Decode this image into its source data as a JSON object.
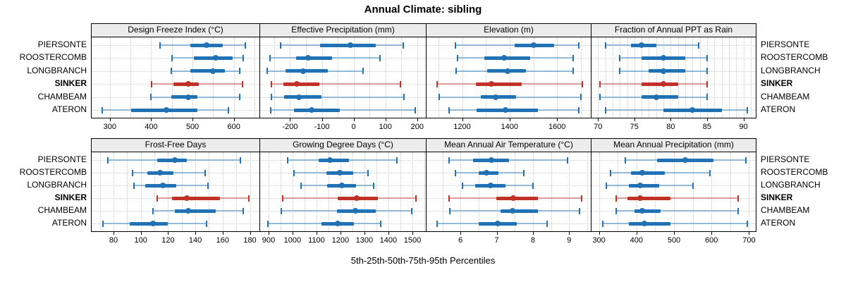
{
  "title": "Annual Climate: sibling",
  "footer": "5th-25th-50th-75th-95th Percentiles",
  "sites": [
    "PIERSONTE",
    "ROOSTERCOMB",
    "LONGBRANCH",
    "SINKER",
    "CHAMBEAM",
    "ATERON"
  ],
  "highlight_site": "SINKER",
  "colors": {
    "normal": "#2171b5",
    "highlight": "#c23127",
    "header_bg": "#ececec",
    "border": "#000000",
    "grid": "#c9c9c9"
  },
  "chart_data": {
    "type": "dotplot-percentile-intervals",
    "percentiles": [
      5,
      25,
      50,
      75,
      95
    ],
    "legend_note": "5th-25th-50th-75th-95th Percentiles",
    "rows_per_panel": [
      "PIERSONTE",
      "ROOSTERCOMB",
      "LONGBRANCH",
      "SINKER",
      "CHAMBEAM",
      "ATERON"
    ],
    "panels": [
      {
        "title": "Design Freeze Index (°C)",
        "domain": [
          256,
          662
        ],
        "ticks": [
          300,
          400,
          500,
          600
        ],
        "minor": 50,
        "values": [
          [
            421,
            494,
            534,
            573,
            628
          ],
          [
            451,
            504,
            556,
            597,
            623
          ],
          [
            448,
            494,
            550,
            579,
            615
          ],
          [
            401,
            454,
            489,
            515,
            621
          ],
          [
            400,
            448,
            489,
            512,
            615
          ],
          [
            282,
            351,
            436,
            512,
            587
          ]
        ]
      },
      {
        "title": "Effective Precipitation (mm)",
        "domain": [
          -294,
          227
        ],
        "ticks": [
          -200,
          -100,
          0,
          100,
          200
        ],
        "minor": 50,
        "values": [
          [
            -230,
            -105,
            -10,
            70,
            157
          ],
          [
            -263,
            -180,
            -144,
            -67,
            83
          ],
          [
            -272,
            -214,
            -158,
            -81,
            29
          ],
          [
            -258,
            -222,
            -178,
            -107,
            147
          ],
          [
            -258,
            -218,
            -173,
            -102,
            158
          ],
          [
            -260,
            -188,
            -133,
            -44,
            194
          ]
        ]
      },
      {
        "title": "Elevation (m)",
        "domain": [
          1050,
          1742
        ],
        "ticks": [
          1200,
          1400,
          1600
        ],
        "minor": 100,
        "values": [
          [
            1172,
            1420,
            1500,
            1588,
            1692
          ],
          [
            1182,
            1292,
            1378,
            1486,
            1667
          ],
          [
            1175,
            1304,
            1392,
            1468,
            1667
          ],
          [
            1093,
            1259,
            1323,
            1452,
            1706
          ],
          [
            1104,
            1279,
            1341,
            1427,
            1700
          ],
          [
            1144,
            1262,
            1383,
            1520,
            1692
          ]
        ]
      },
      {
        "title": "Fraction of Annual PPT as Rain",
        "domain": [
          69.1,
          91.7
        ],
        "ticks": [
          70,
          75,
          80,
          85,
          90
        ],
        "minor": 1,
        "values": [
          [
            71,
            74.5,
            76,
            78,
            83.8
          ],
          [
            73,
            76,
            79,
            82,
            85
          ],
          [
            73,
            77,
            79,
            82,
            85
          ],
          [
            70.3,
            76,
            79,
            81,
            85
          ],
          [
            70.3,
            76,
            78,
            81,
            85
          ],
          [
            71,
            79,
            83,
            87,
            90.5
          ]
        ]
      },
      {
        "title": "Frost-Free Days",
        "domain": [
          64,
          187
        ],
        "ticks": [
          80,
          100,
          120,
          140,
          160,
          180
        ],
        "minor": 10,
        "values": [
          [
            76,
            112,
            125,
            134,
            173
          ],
          [
            94,
            105,
            114,
            124,
            147
          ],
          [
            95,
            103,
            116,
            126,
            149
          ],
          [
            112,
            123,
            134,
            158,
            179
          ],
          [
            109,
            125,
            135,
            155,
            175
          ],
          [
            72,
            92,
            109,
            120,
            148
          ]
        ]
      },
      {
        "title": "Growing Degree Days (°C)",
        "domain": [
          865,
          1556
        ],
        "ticks": [
          900,
          1000,
          1100,
          1200,
          1300,
          1400,
          1500
        ],
        "minor": 50,
        "values": [
          [
            980,
            1110,
            1155,
            1235,
            1435
          ],
          [
            1006,
            1140,
            1197,
            1254,
            1316
          ],
          [
            1036,
            1145,
            1207,
            1266,
            1338
          ],
          [
            959,
            1189,
            1268,
            1357,
            1516
          ],
          [
            953,
            1186,
            1263,
            1347,
            1498
          ],
          [
            897,
            1120,
            1189,
            1256,
            1367
          ]
        ]
      },
      {
        "title": "Mean Annual Air Temperature (°C)",
        "domain": [
          5.06,
          9.6
        ],
        "ticks": [
          6,
          7,
          8,
          9
        ],
        "minor": 0.5,
        "values": [
          [
            5.68,
            6.35,
            6.85,
            7.35,
            8.95
          ],
          [
            5.85,
            6.5,
            6.72,
            7.05,
            7.75
          ],
          [
            6.05,
            6.41,
            6.84,
            7.24,
            8.0
          ],
          [
            5.68,
            6.98,
            7.46,
            8.14,
            9.35
          ],
          [
            5.7,
            7.11,
            7.43,
            8.14,
            9.29
          ],
          [
            5.35,
            6.51,
            7.03,
            7.56,
            8.4
          ]
        ]
      },
      {
        "title": "Mean Annual Precipitation (mm)",
        "domain": [
          280,
          718
        ],
        "ticks": [
          300,
          400,
          500,
          600,
          700
        ],
        "minor": 50,
        "values": [
          [
            370,
            455,
            530,
            605,
            692
          ],
          [
            330,
            385,
            415,
            475,
            595
          ],
          [
            320,
            380,
            410,
            460,
            550
          ],
          [
            345,
            375,
            410,
            490,
            670
          ],
          [
            345,
            395,
            415,
            465,
            670
          ],
          [
            310,
            380,
            420,
            490,
            695
          ]
        ]
      }
    ]
  }
}
